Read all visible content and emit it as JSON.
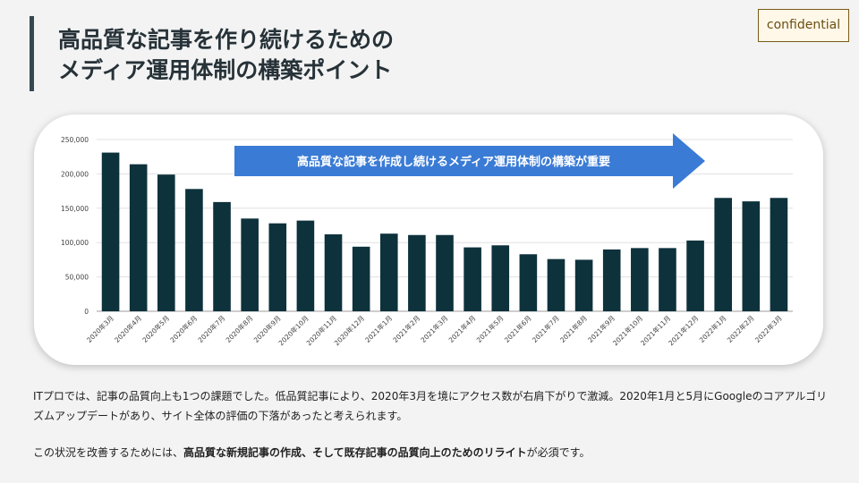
{
  "title": {
    "line1": "高品質な記事を作り続けるための",
    "line2": "メディア運用体制の構築ポイント"
  },
  "badge": "confidential",
  "chart_data": {
    "type": "bar",
    "categories": [
      "2020年3月",
      "2020年4月",
      "2020年5月",
      "2020年6月",
      "2020年7月",
      "2020年8月",
      "2020年9月",
      "2020年10月",
      "2020年11月",
      "2020年12月",
      "2021年1月",
      "2021年2月",
      "2021年3月",
      "2021年4月",
      "2021年5月",
      "2021年6月",
      "2021年7月",
      "2021年8月",
      "2021年9月",
      "2021年10月",
      "2021年11月",
      "2021年12月",
      "2022年1月",
      "2022年2月",
      "2022年3月"
    ],
    "values": [
      231000,
      214000,
      199000,
      178000,
      159000,
      135000,
      128000,
      132000,
      112000,
      94000,
      113000,
      111000,
      111000,
      93000,
      96000,
      83000,
      76000,
      75000,
      90000,
      92000,
      92000,
      103000,
      165000,
      160000,
      165000
    ],
    "yticks": [
      "250,000",
      "200,000",
      "150,000",
      "100,000",
      "50,000",
      "0"
    ],
    "ytick_values": [
      250000,
      200000,
      150000,
      100000,
      50000,
      0
    ],
    "ylim": [
      0,
      250000
    ],
    "bar_color": "#0d323c",
    "grid": true,
    "annotation": {
      "text": "高品質な記事を作成し続けるメディア運用体制の構築が重要",
      "color": "#3a7bd5"
    }
  },
  "paragraph1": "ITプロでは、記事の品質向上も1つの課題でした。低品質記事により、2020年3月を境にアクセス数が右肩下がりで激減。2020年1月と5月にGoogleのコアアルゴリズムアップデートがあり、サイト全体の評価の下落があったと考えられます。",
  "paragraph2": {
    "part1": "この状況を改善するためには、",
    "part2": "高品質な新規記事の作成、そして既存記事の品質向上のためのリライト",
    "part3": "が必須です。"
  }
}
